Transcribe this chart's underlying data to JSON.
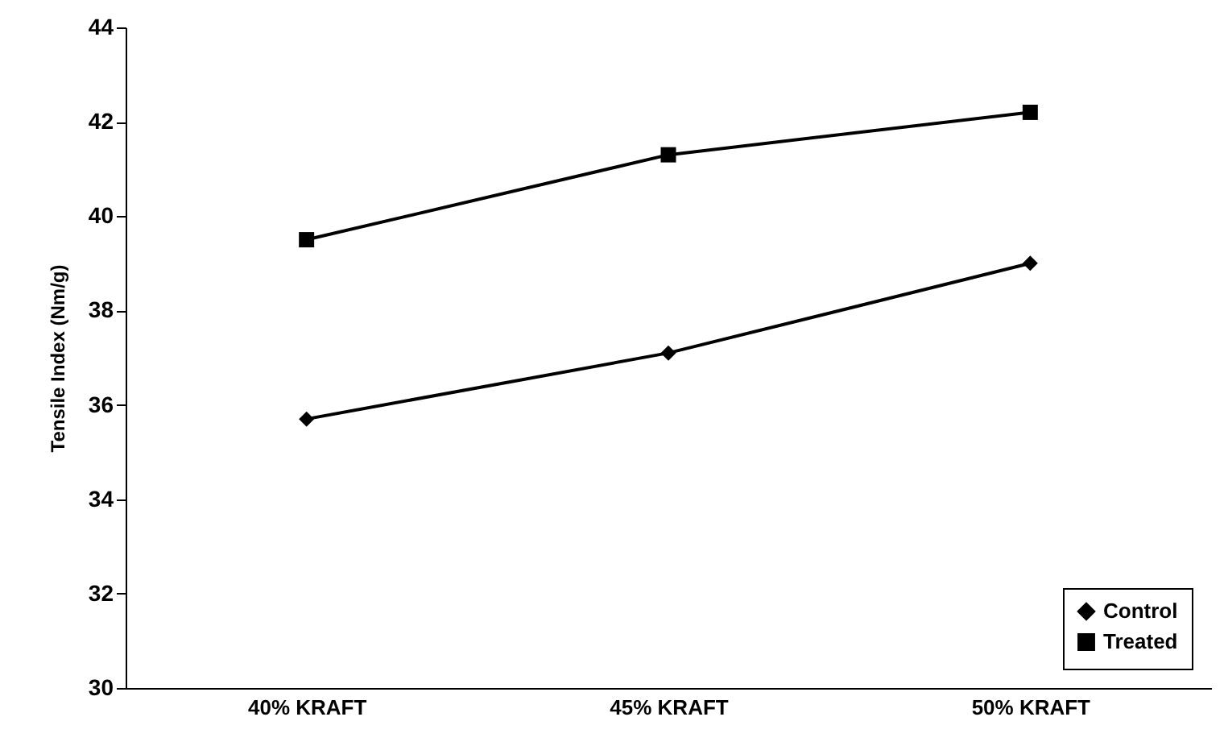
{
  "chart_data": {
    "type": "line",
    "ylabel": "Tensile Index (Nm/g)",
    "categories": [
      "40% KRAFT",
      "45% KRAFT",
      "50% KRAFT"
    ],
    "series": [
      {
        "name": "Control",
        "color": "#000000",
        "marker": "diamond",
        "values": [
          35.7,
          37.1,
          39.0
        ]
      },
      {
        "name": "Treated",
        "color": "#000000",
        "marker": "square",
        "values": [
          39.5,
          41.3,
          42.2
        ]
      }
    ],
    "ylim": [
      30,
      44
    ],
    "yticks": [
      30,
      32,
      34,
      36,
      38,
      40,
      42,
      44
    ],
    "grid": false,
    "legend": "bottom right"
  }
}
